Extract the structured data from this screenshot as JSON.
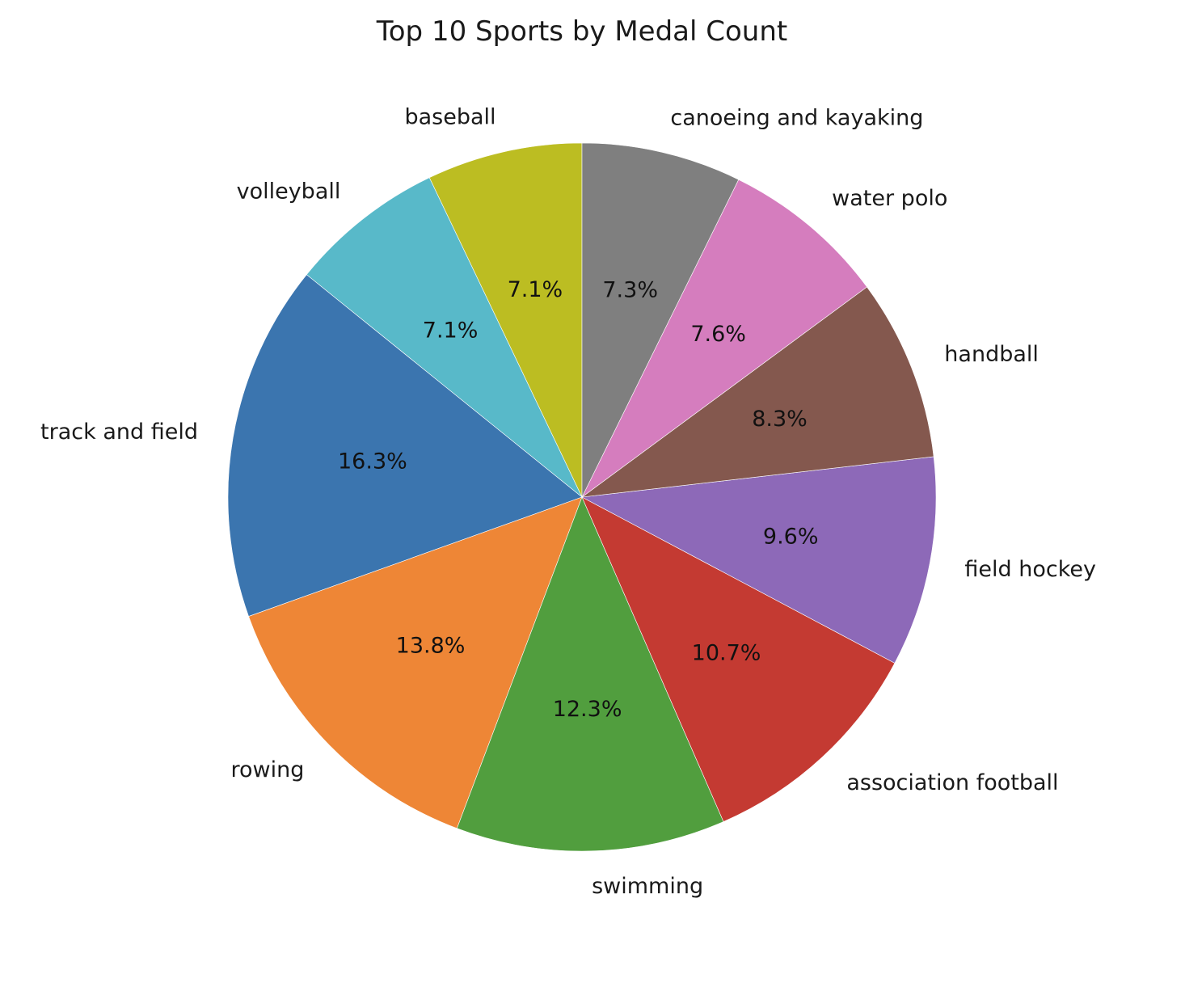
{
  "chart_data": {
    "type": "pie",
    "title": "Top 10 Sports by Medal Count",
    "start_angle_deg": 90,
    "direction": "counterclockwise",
    "slices": [
      {
        "label": "baseball",
        "value": 7.1,
        "pct_label": "7.1%",
        "color": "#bcbd22"
      },
      {
        "label": "volleyball",
        "value": 7.1,
        "pct_label": "7.1%",
        "color": "#58b9c9"
      },
      {
        "label": "track and field",
        "value": 16.3,
        "pct_label": "16.3%",
        "color": "#3b75af"
      },
      {
        "label": "rowing",
        "value": 13.8,
        "pct_label": "13.8%",
        "color": "#ee8636"
      },
      {
        "label": "swimming",
        "value": 12.3,
        "pct_label": "12.3%",
        "color": "#519e3e"
      },
      {
        "label": "association football",
        "value": 10.7,
        "pct_label": "10.7%",
        "color": "#c43a32"
      },
      {
        "label": "field hockey",
        "value": 9.6,
        "pct_label": "9.6%",
        "color": "#8d69b8"
      },
      {
        "label": "handball",
        "value": 8.3,
        "pct_label": "8.3%",
        "color": "#84584e"
      },
      {
        "label": "water polo",
        "value": 7.6,
        "pct_label": "7.6%",
        "color": "#d57dbe"
      },
      {
        "label": "canoeing and kayaking",
        "value": 7.3,
        "pct_label": "7.3%",
        "color": "#7f7f7f"
      }
    ]
  }
}
